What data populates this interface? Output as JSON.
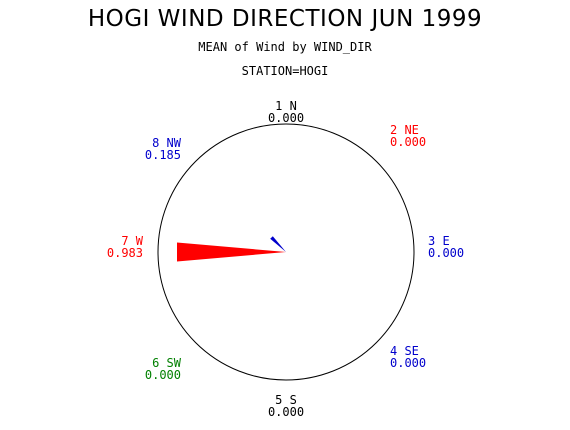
{
  "title": "HOGI WIND DIRECTION JUN 1999",
  "subtitle": "MEAN of Wind by WIND_DIR",
  "station": "STATION=HOGI",
  "colors": {
    "red": "#ff0000",
    "blue": "#0000cc",
    "green": "#008000",
    "black": "#000000"
  },
  "chart_data": {
    "type": "pie",
    "directions": [
      {
        "id": "1",
        "name": "N",
        "label": "1 N",
        "value": 0.0,
        "value_label": "0.000",
        "color": "#000000"
      },
      {
        "id": "2",
        "name": "NE",
        "label": "2 NE",
        "value": 0.0,
        "value_label": "0.000",
        "color": "#ff0000"
      },
      {
        "id": "3",
        "name": "E",
        "label": "3 E",
        "value": 0.0,
        "value_label": "0.000",
        "color": "#0000cc"
      },
      {
        "id": "4",
        "name": "SE",
        "label": "4 SE",
        "value": 0.0,
        "value_label": "0.000",
        "color": "#0000cc"
      },
      {
        "id": "5",
        "name": "S",
        "label": "5 S",
        "value": 0.0,
        "value_label": "0.000",
        "color": "#000000"
      },
      {
        "id": "6",
        "name": "SW",
        "label": "6 SW",
        "value": 0.0,
        "value_label": "0.000",
        "color": "#008000"
      },
      {
        "id": "7",
        "name": "W",
        "label": "7 W",
        "value": 0.983,
        "value_label": "0.983",
        "color": "#ff0000"
      },
      {
        "id": "8",
        "name": "NW",
        "label": "8 NW",
        "value": 0.185,
        "value_label": "0.185",
        "color": "#0000cc"
      }
    ],
    "rmax": 1.15
  }
}
